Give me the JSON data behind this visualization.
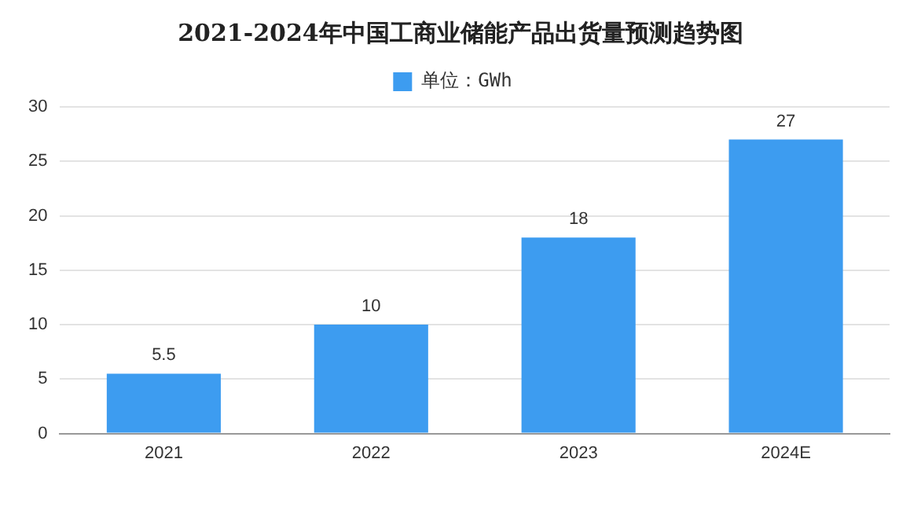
{
  "chart_data": {
    "type": "bar",
    "title": "2021-2024年中国工商业储能产品出货量预测趋势图",
    "categories": [
      "2021",
      "2022",
      "2023",
      "2024E"
    ],
    "series": [
      {
        "name": "单位：GWh",
        "color": "#3d9cf0",
        "values": [
          5.5,
          10,
          18,
          27
        ]
      }
    ],
    "ylim": [
      0,
      30
    ],
    "yticks": [
      0,
      5,
      10,
      15,
      20,
      25,
      30
    ],
    "grid": "y",
    "legend": "top",
    "data_labels": true
  }
}
